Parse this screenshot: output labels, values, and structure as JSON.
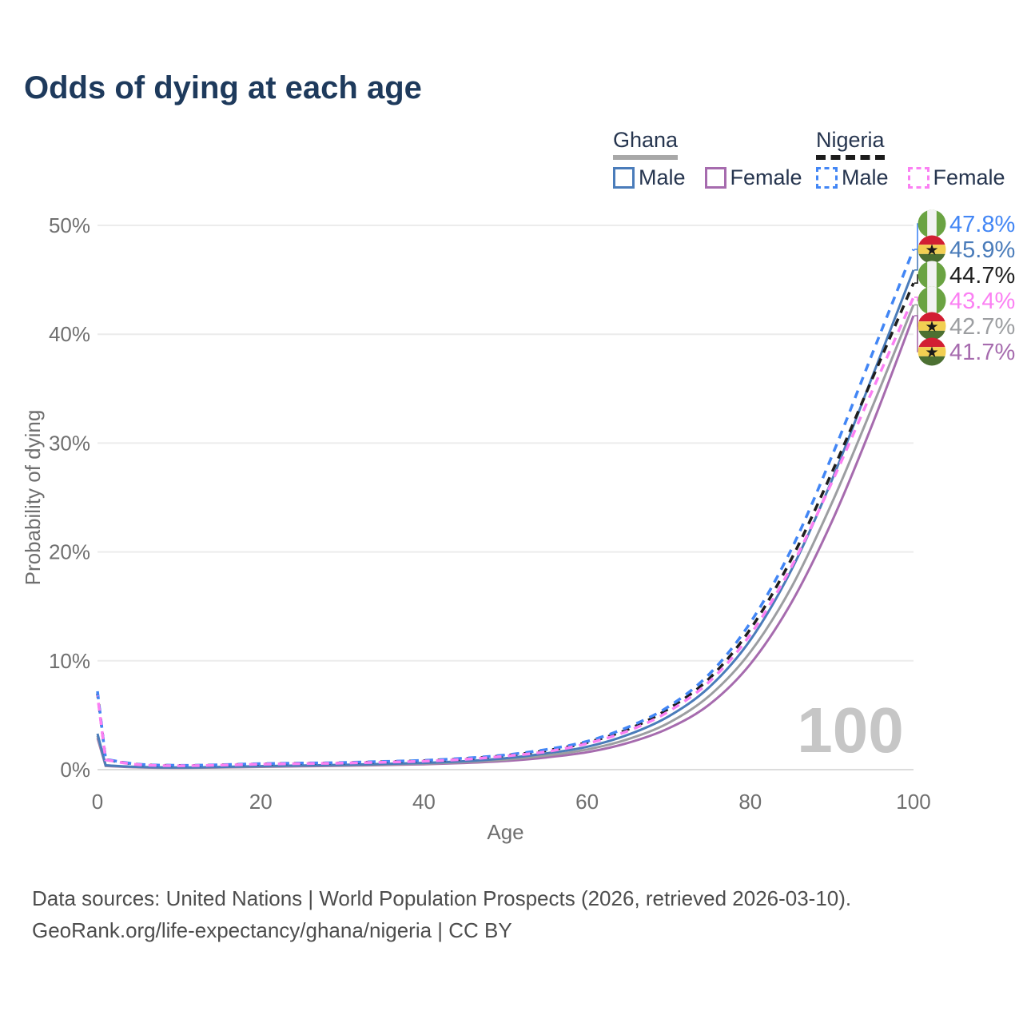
{
  "title": "Odds of dying at each age",
  "legend": {
    "groups": [
      {
        "name": "Ghana",
        "line_style": "solid",
        "underline_color": "#a8a8a8",
        "items": [
          {
            "label": "Male",
            "color": "#4a7cba"
          },
          {
            "label": "Female",
            "color": "#a66bae"
          }
        ]
      },
      {
        "name": "Nigeria",
        "line_style": "dashed",
        "underline_color": "#1c1c1c",
        "items": [
          {
            "label": "Male",
            "color": "#4286f5"
          },
          {
            "label": "Female",
            "color": "#fb80f3"
          }
        ]
      }
    ]
  },
  "chart_data": {
    "type": "line",
    "title": "Odds of dying at each age",
    "xlabel": "Age",
    "ylabel": "Probability of dying",
    "xlim": [
      0,
      100
    ],
    "ylim": [
      0,
      50
    ],
    "x_ticks": [
      0,
      20,
      40,
      60,
      80,
      100
    ],
    "y_ticks": [
      0,
      10,
      20,
      30,
      40,
      50
    ],
    "y_tick_labels": [
      "0%",
      "10%",
      "20%",
      "30%",
      "40%",
      "50%"
    ],
    "grid": true,
    "legend_position": "top-right",
    "watermark": "100",
    "x": [
      0,
      1,
      5,
      10,
      15,
      20,
      25,
      30,
      35,
      40,
      45,
      50,
      55,
      60,
      65,
      70,
      75,
      80,
      85,
      90,
      95,
      100
    ],
    "series": [
      {
        "name": "Ghana Female",
        "country": "Ghana",
        "sex": "Female",
        "color": "#a66bae",
        "dash": "solid",
        "end_label": "41.7%",
        "end_value": 41.7,
        "values": [
          2.9,
          0.34,
          0.21,
          0.17,
          0.2,
          0.26,
          0.31,
          0.36,
          0.42,
          0.5,
          0.62,
          0.8,
          1.12,
          1.6,
          2.45,
          3.8,
          6.0,
          9.7,
          15.3,
          22.8,
          31.8,
          41.7
        ]
      },
      {
        "name": "Ghana",
        "country": "Ghana",
        "sex": "Both",
        "color": "#9c9ea1",
        "dash": "solid",
        "end_label": "42.7%",
        "end_value": 42.7,
        "values": [
          3.1,
          0.37,
          0.23,
          0.18,
          0.22,
          0.29,
          0.35,
          0.4,
          0.47,
          0.56,
          0.7,
          0.92,
          1.3,
          1.85,
          2.8,
          4.3,
          6.8,
          10.8,
          16.7,
          24.5,
          33.4,
          42.7
        ]
      },
      {
        "name": "Ghana Male",
        "country": "Ghana",
        "sex": "Male",
        "color": "#4a7cba",
        "dash": "solid",
        "end_label": "45.9%",
        "end_value": 45.9,
        "values": [
          3.3,
          0.4,
          0.25,
          0.2,
          0.25,
          0.32,
          0.38,
          0.44,
          0.52,
          0.62,
          0.78,
          1.05,
          1.5,
          2.1,
          3.2,
          4.9,
          7.6,
          11.9,
          18.3,
          26.6,
          36.2,
          45.9
        ]
      },
      {
        "name": "Nigeria",
        "country": "Nigeria",
        "sex": "Both",
        "color": "#1f1f1f",
        "dash": "dashed",
        "end_label": "44.7%",
        "end_value": 44.7,
        "values": [
          7.0,
          0.92,
          0.48,
          0.38,
          0.43,
          0.52,
          0.58,
          0.62,
          0.72,
          0.82,
          1.0,
          1.3,
          1.75,
          2.5,
          3.7,
          5.6,
          8.4,
          12.9,
          19.3,
          27.3,
          36.0,
          44.7
        ]
      },
      {
        "name": "Nigeria Male",
        "country": "Nigeria",
        "sex": "Male",
        "color": "#4286f5",
        "dash": "dashed",
        "end_label": "47.8%",
        "end_value": 47.8,
        "values": [
          7.2,
          0.95,
          0.5,
          0.4,
          0.45,
          0.55,
          0.6,
          0.65,
          0.75,
          0.85,
          1.05,
          1.35,
          1.85,
          2.6,
          3.9,
          5.8,
          8.8,
          13.5,
          20.2,
          28.8,
          38.3,
          47.8
        ]
      },
      {
        "name": "Nigeria Female",
        "country": "Nigeria",
        "sex": "Female",
        "color": "#fb80f3",
        "dash": "dashed",
        "end_label": "43.4%",
        "end_value": 43.4,
        "values": [
          6.8,
          0.9,
          0.46,
          0.36,
          0.41,
          0.5,
          0.55,
          0.6,
          0.68,
          0.78,
          0.95,
          1.25,
          1.65,
          2.4,
          3.55,
          5.35,
          8.1,
          12.4,
          18.6,
          26.4,
          34.9,
          43.4
        ]
      }
    ],
    "flag_colors": {
      "nigeria_green": "#6aa342",
      "nigeria_white": "#f2f2f2",
      "ghana_red": "#d21e33",
      "ghana_yellow": "#f2cf52",
      "ghana_green": "#4c7032",
      "ghana_star": "#1a1a1a"
    }
  },
  "footer": {
    "line1": "Data sources: United Nations | World Population Prospects (2026, retrieved 2026-03-10).",
    "line2": "GeoRank.org/life-expectancy/ghana/nigeria | CC BY"
  }
}
